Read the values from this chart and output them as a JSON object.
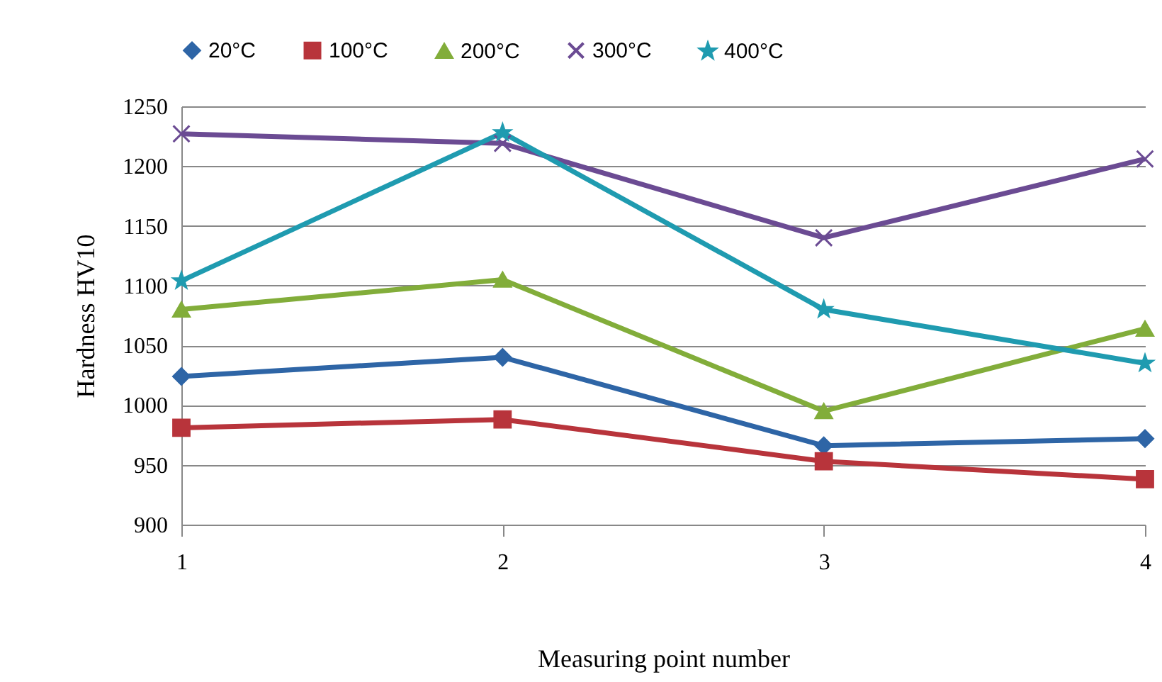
{
  "chart_data": {
    "type": "line",
    "xlabel": "Measuring point number",
    "ylabel": "Hardness HV10",
    "categories": [
      "1",
      "2",
      "3",
      "4"
    ],
    "series": [
      {
        "name": "20°C",
        "color": "#2e65a6",
        "marker": "diamond",
        "values": [
          1024,
          1040,
          966,
          972
        ]
      },
      {
        "name": "100°C",
        "color": "#b8343b",
        "marker": "square",
        "values": [
          981,
          988,
          953,
          938
        ]
      },
      {
        "name": "200°C",
        "color": "#82ad3a",
        "marker": "triangle",
        "values": [
          1080,
          1105,
          995,
          1064
        ]
      },
      {
        "name": "300°C",
        "color": "#6b4b93",
        "marker": "cross",
        "values": [
          1227,
          1219,
          1140,
          1206
        ]
      },
      {
        "name": "400°C",
        "color": "#1f9bb0",
        "marker": "star",
        "values": [
          1104,
          1228,
          1080,
          1035
        ]
      }
    ],
    "ylim": [
      900,
      1250
    ],
    "yticks": [
      900,
      950,
      1000,
      1050,
      1100,
      1150,
      1200,
      1250
    ],
    "grid": "y",
    "legend": "top"
  }
}
